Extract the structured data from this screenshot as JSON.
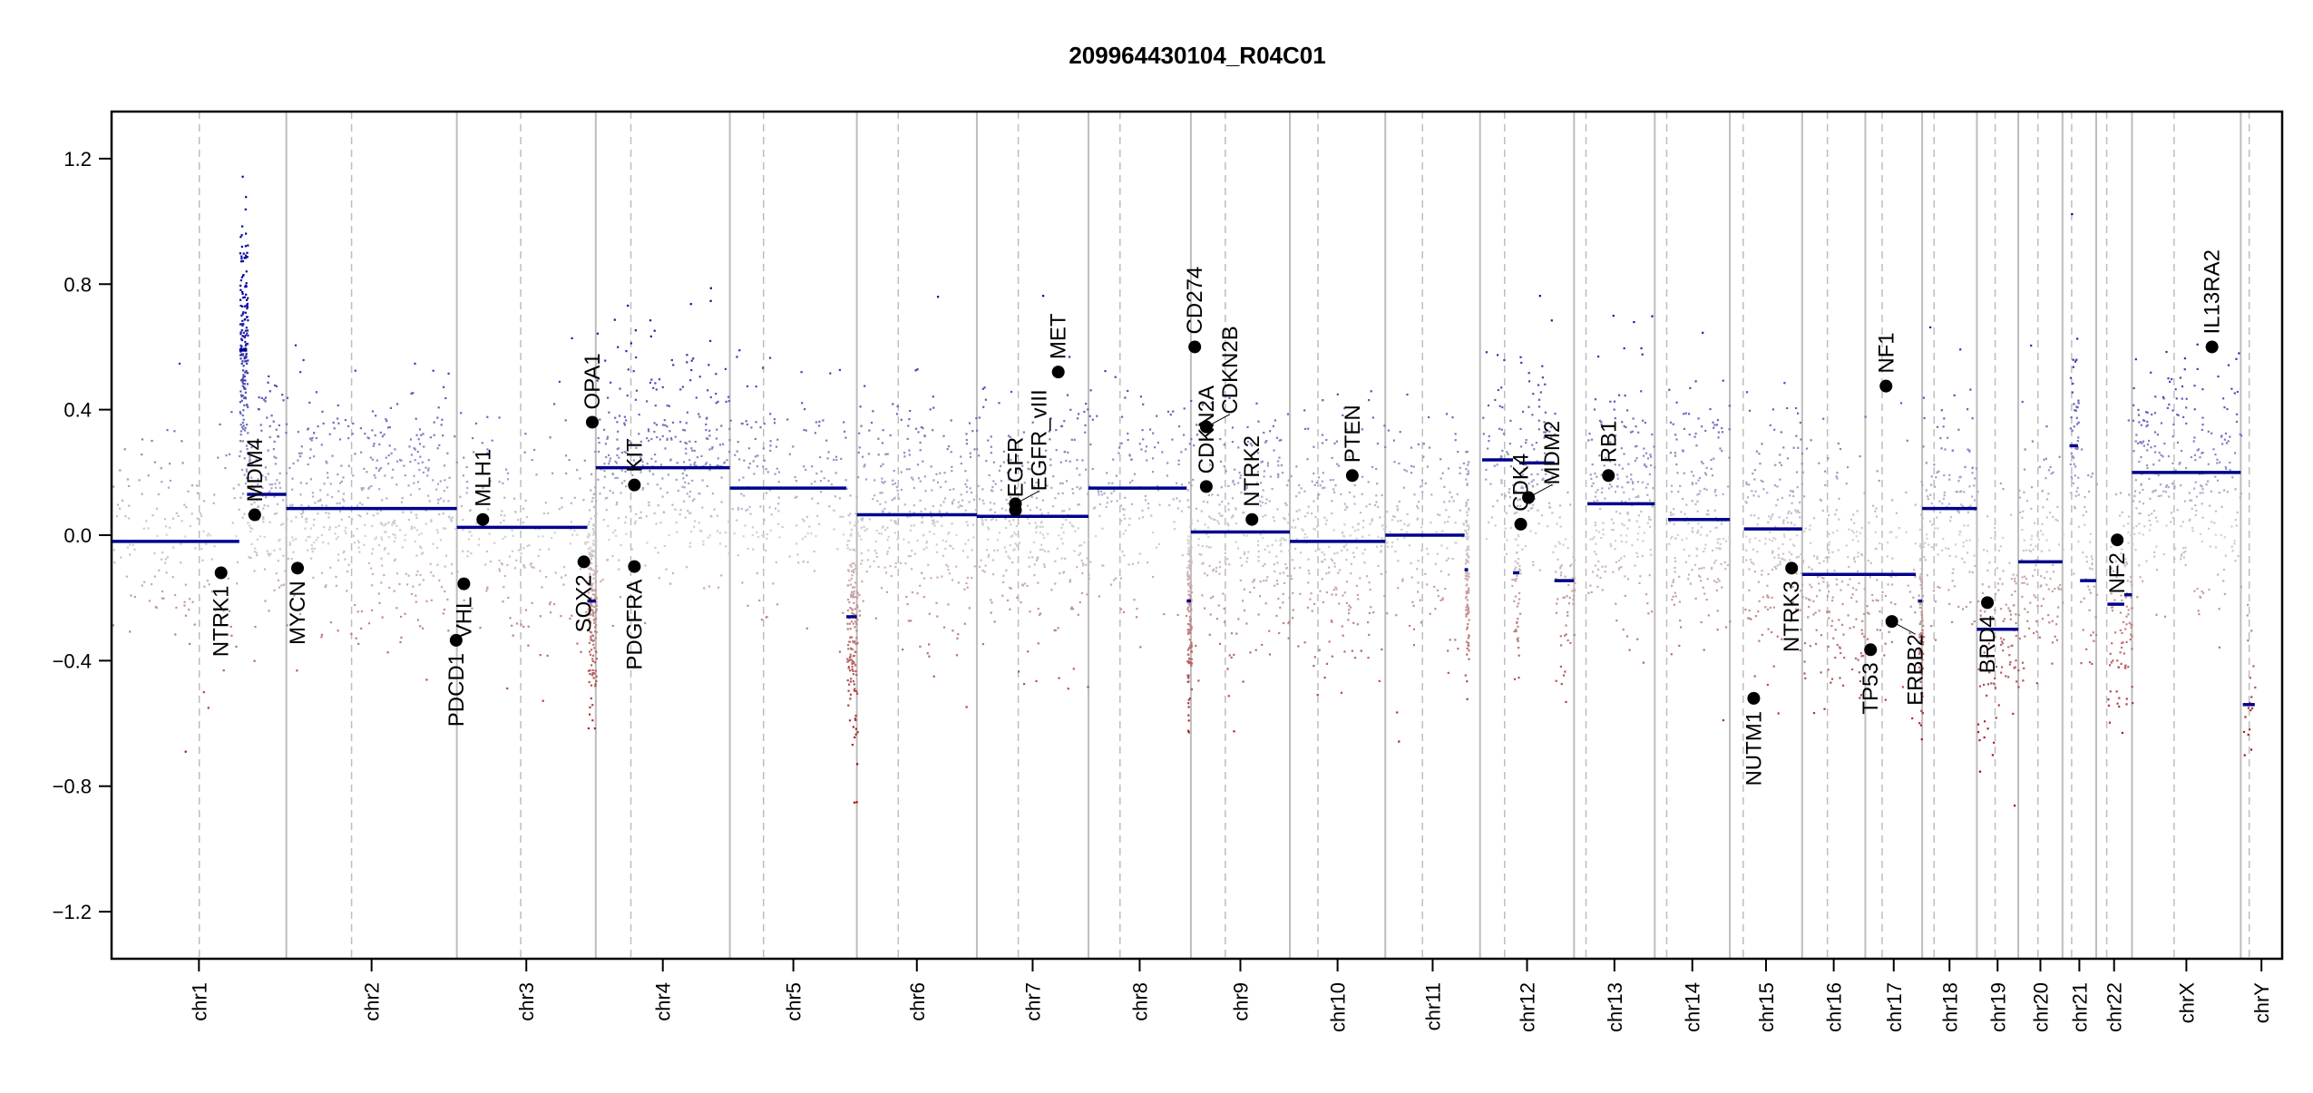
{
  "chart_data": {
    "type": "scatter",
    "title": "209964430104_R04C01",
    "xlabel": "",
    "ylabel": "",
    "ylim": [
      -1.35,
      1.35
    ],
    "yticks": [
      "-1.2",
      "-0.8",
      "-0.4",
      "0.0",
      "0.4",
      "0.8",
      "1.2"
    ],
    "grid": "chromosome boundaries (solid) and centromeres (dashed)",
    "colors": {
      "gain": "#0000a0",
      "neutral": "#d3d3d3",
      "loss": "#a00000",
      "segment": "#00008b",
      "gene": "#000000"
    },
    "chromosomes": [
      {
        "name": "chr1",
        "length_mb": 249,
        "centromere_mb": 125
      },
      {
        "name": "chr2",
        "length_mb": 243,
        "centromere_mb": 93
      },
      {
        "name": "chr3",
        "length_mb": 198,
        "centromere_mb": 91
      },
      {
        "name": "chr4",
        "length_mb": 191,
        "centromere_mb": 50
      },
      {
        "name": "chr5",
        "length_mb": 181,
        "centromere_mb": 48
      },
      {
        "name": "chr6",
        "length_mb": 171,
        "centromere_mb": 59
      },
      {
        "name": "chr7",
        "length_mb": 159,
        "centromere_mb": 59
      },
      {
        "name": "chr8",
        "length_mb": 146,
        "centromere_mb": 45
      },
      {
        "name": "chr9",
        "length_mb": 141,
        "centromere_mb": 49
      },
      {
        "name": "chr10",
        "length_mb": 136,
        "centromere_mb": 40
      },
      {
        "name": "chr11",
        "length_mb": 135,
        "centromere_mb": 53
      },
      {
        "name": "chr12",
        "length_mb": 134,
        "centromere_mb": 35
      },
      {
        "name": "chr13",
        "length_mb": 115,
        "centromere_mb": 17
      },
      {
        "name": "chr14",
        "length_mb": 107,
        "centromere_mb": 17
      },
      {
        "name": "chr15",
        "length_mb": 103,
        "centromere_mb": 19
      },
      {
        "name": "chr16",
        "length_mb": 90,
        "centromere_mb": 36
      },
      {
        "name": "chr17",
        "length_mb": 81,
        "centromere_mb": 24
      },
      {
        "name": "chr18",
        "length_mb": 78,
        "centromere_mb": 17
      },
      {
        "name": "chr19",
        "length_mb": 59,
        "centromere_mb": 26
      },
      {
        "name": "chr20",
        "length_mb": 63,
        "centromere_mb": 28
      },
      {
        "name": "chr21",
        "length_mb": 48,
        "centromere_mb": 13
      },
      {
        "name": "chr22",
        "length_mb": 51,
        "centromere_mb": 15
      },
      {
        "name": "chrX",
        "length_mb": 155,
        "centromere_mb": 60
      },
      {
        "name": "chrY",
        "length_mb": 59,
        "centromere_mb": 12
      }
    ],
    "segments": [
      {
        "chr": "chr1",
        "start": 0,
        "end": 182,
        "value": -0.02
      },
      {
        "chr": "chr1",
        "start": 182,
        "end": 193,
        "value": 0.59
      },
      {
        "chr": "chr1",
        "start": 193,
        "end": 249,
        "value": 0.13
      },
      {
        "chr": "chr2",
        "start": 0,
        "end": 243,
        "value": 0.085
      },
      {
        "chr": "chr3",
        "start": 0,
        "end": 186,
        "value": 0.025
      },
      {
        "chr": "chr3",
        "start": 186,
        "end": 198,
        "value": -0.21
      },
      {
        "chr": "chr4",
        "start": 0,
        "end": 191,
        "value": 0.215
      },
      {
        "chr": "chr5",
        "start": 0,
        "end": 166,
        "value": 0.15
      },
      {
        "chr": "chr5",
        "start": 166,
        "end": 181,
        "value": -0.26
      },
      {
        "chr": "chr6",
        "start": 0,
        "end": 171,
        "value": 0.065
      },
      {
        "chr": "chr7",
        "start": 0,
        "end": 159,
        "value": 0.06
      },
      {
        "chr": "chr8",
        "start": 0,
        "end": 140,
        "value": 0.15
      },
      {
        "chr": "chr8",
        "start": 140,
        "end": 146,
        "value": -0.21
      },
      {
        "chr": "chr9",
        "start": 0,
        "end": 141,
        "value": 0.01
      },
      {
        "chr": "chr10",
        "start": 0,
        "end": 136,
        "value": -0.02
      },
      {
        "chr": "chr11",
        "start": 0,
        "end": 113,
        "value": 0.0
      },
      {
        "chr": "chr11",
        "start": 113,
        "end": 118,
        "value": -0.11
      },
      {
        "chr": "chr12",
        "start": 3,
        "end": 47,
        "value": 0.24
      },
      {
        "chr": "chr12",
        "start": 47,
        "end": 56,
        "value": -0.12
      },
      {
        "chr": "chr12",
        "start": 56,
        "end": 106,
        "value": 0.23
      },
      {
        "chr": "chr12",
        "start": 106,
        "end": 134,
        "value": -0.145
      },
      {
        "chr": "chr13",
        "start": 19,
        "end": 115,
        "value": 0.1
      },
      {
        "chr": "chr14",
        "start": 19,
        "end": 107,
        "value": 0.05
      },
      {
        "chr": "chr15",
        "start": 20,
        "end": 103,
        "value": 0.02
      },
      {
        "chr": "chr16",
        "start": 0,
        "end": 90,
        "value": -0.125
      },
      {
        "chr": "chr17",
        "start": 0,
        "end": 72,
        "value": -0.125
      },
      {
        "chr": "chr17",
        "start": 75,
        "end": 81,
        "value": -0.21
      },
      {
        "chr": "chr18",
        "start": 0,
        "end": 78,
        "value": 0.085
      },
      {
        "chr": "chr19",
        "start": 0,
        "end": 59,
        "value": -0.3
      },
      {
        "chr": "chr20",
        "start": 0,
        "end": 63,
        "value": -0.085
      },
      {
        "chr": "chr21",
        "start": 10,
        "end": 22,
        "value": 0.285
      },
      {
        "chr": "chr21",
        "start": 25,
        "end": 48,
        "value": -0.145
      },
      {
        "chr": "chr22",
        "start": 16,
        "end": 40,
        "value": -0.22
      },
      {
        "chr": "chr22",
        "start": 40,
        "end": 51,
        "value": -0.19
      },
      {
        "chrX": true,
        "chr": "chrX",
        "start": 0,
        "end": 155,
        "value": 0.2
      },
      {
        "chr": "chrY",
        "start": 3,
        "end": 20,
        "value": -0.54
      }
    ],
    "genes": [
      {
        "name": "NTRK1",
        "chr": "chr1",
        "pos": 156,
        "value": -0.12
      },
      {
        "name": "MDM4",
        "chr": "chr1",
        "pos": 204,
        "value": 0.065
      },
      {
        "name": "MYCN",
        "chr": "chr2",
        "pos": 16,
        "value": -0.105
      },
      {
        "name": "PDCD1",
        "chr": "chr2",
        "pos": 242,
        "value": -0.335
      },
      {
        "name": "VHL",
        "chr": "chr3",
        "pos": 10,
        "value": -0.155
      },
      {
        "name": "MLH1",
        "chr": "chr3",
        "pos": 37,
        "value": 0.05
      },
      {
        "name": "SOX2",
        "chr": "chr3",
        "pos": 181,
        "value": -0.085
      },
      {
        "name": "OPA1",
        "chr": "chr3",
        "pos": 193,
        "value": 0.36
      },
      {
        "name": "KIT",
        "chr": "chr4",
        "pos": 55,
        "value": 0.16
      },
      {
        "name": "PDGFRA",
        "chr": "chr4",
        "pos": 55,
        "value": -0.1
      },
      {
        "name": "EGFR",
        "chr": "chr7",
        "pos": 55,
        "value": 0.08
      },
      {
        "name": "EGFR_vIII",
        "chr": "chr7",
        "pos": 55,
        "value": 0.1
      },
      {
        "name": "MET",
        "chr": "chr7",
        "pos": 116,
        "value": 0.52
      },
      {
        "name": "CD274",
        "chr": "chr9",
        "pos": 5.5,
        "value": 0.6
      },
      {
        "name": "CDKN2B",
        "chr": "chr9",
        "pos": 22.0,
        "value": 0.345
      },
      {
        "name": "CDKN2A",
        "chr": "chr9",
        "pos": 21.9,
        "value": 0.155
      },
      {
        "name": "NTRK2",
        "chr": "chr9",
        "pos": 87,
        "value": 0.05
      },
      {
        "name": "PTEN",
        "chr": "chr10",
        "pos": 89,
        "value": 0.19
      },
      {
        "name": "CDK4",
        "chr": "chr12",
        "pos": 58,
        "value": 0.035
      },
      {
        "name": "MDM2",
        "chr": "chr12",
        "pos": 69,
        "value": 0.12
      },
      {
        "name": "RB1",
        "chr": "chr13",
        "pos": 49,
        "value": 0.19
      },
      {
        "name": "NUTM1",
        "chr": "chr15",
        "pos": 34,
        "value": -0.52
      },
      {
        "name": "NTRK3",
        "chr": "chr15",
        "pos": 88,
        "value": -0.105
      },
      {
        "name": "TP53",
        "chr": "chr17",
        "pos": 7.5,
        "value": -0.365
      },
      {
        "name": "NF1",
        "chr": "chr17",
        "pos": 29.5,
        "value": 0.475
      },
      {
        "name": "ERBB2",
        "chr": "chr17",
        "pos": 37.8,
        "value": -0.275
      },
      {
        "name": "BRD4",
        "chr": "chr19",
        "pos": 15,
        "value": -0.215
      },
      {
        "name": "NF2",
        "chr": "chr22",
        "pos": 30,
        "value": -0.015
      },
      {
        "name": "IL13RA2",
        "chr": "chrX",
        "pos": 114,
        "value": 0.6
      }
    ]
  }
}
